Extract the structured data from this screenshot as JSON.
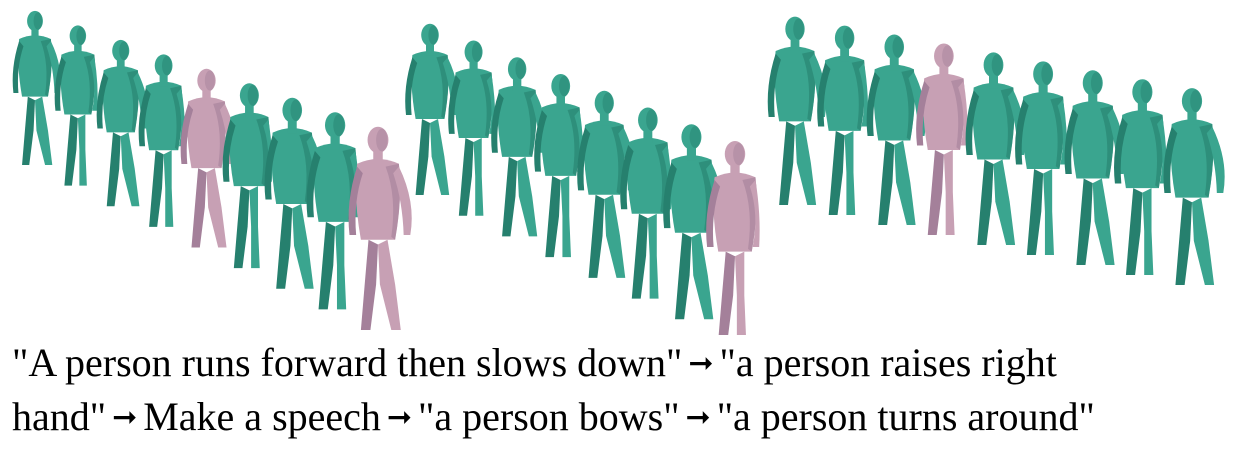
{
  "figure": {
    "colors": {
      "motion_body": "#3aa58f",
      "motion_shadow": "#26806e",
      "keyframe_body": "#c7a0b4",
      "keyframe_shadow": "#a4809a"
    },
    "sequences": [
      {
        "name": "sequence-1",
        "figures": [
          {
            "kind": "motion"
          },
          {
            "kind": "motion"
          },
          {
            "kind": "motion"
          },
          {
            "kind": "motion"
          },
          {
            "kind": "keyframe"
          },
          {
            "kind": "motion"
          },
          {
            "kind": "motion"
          },
          {
            "kind": "motion"
          },
          {
            "kind": "keyframe"
          }
        ]
      },
      {
        "name": "sequence-2",
        "figures": [
          {
            "kind": "motion"
          },
          {
            "kind": "motion"
          },
          {
            "kind": "motion"
          },
          {
            "kind": "motion"
          },
          {
            "kind": "motion"
          },
          {
            "kind": "motion"
          },
          {
            "kind": "motion"
          },
          {
            "kind": "keyframe"
          }
        ]
      },
      {
        "name": "sequence-3",
        "figures": [
          {
            "kind": "motion"
          },
          {
            "kind": "motion"
          },
          {
            "kind": "motion"
          },
          {
            "kind": "keyframe"
          },
          {
            "kind": "motion"
          },
          {
            "kind": "motion"
          },
          {
            "kind": "motion"
          },
          {
            "kind": "motion"
          },
          {
            "kind": "motion"
          }
        ]
      }
    ]
  },
  "caption": {
    "line1": {
      "part1": "\"A person runs forward then slows down\"",
      "arrow1": "➞",
      "part2": "\"a person raises right"
    },
    "line2": {
      "part1": "hand\"",
      "arrow1": "➞",
      "part2": "Make a speech",
      "arrow2": "➞",
      "part3": "\"a person bows\"",
      "arrow3": "➞",
      "part4": "\"a person turns around\""
    }
  }
}
